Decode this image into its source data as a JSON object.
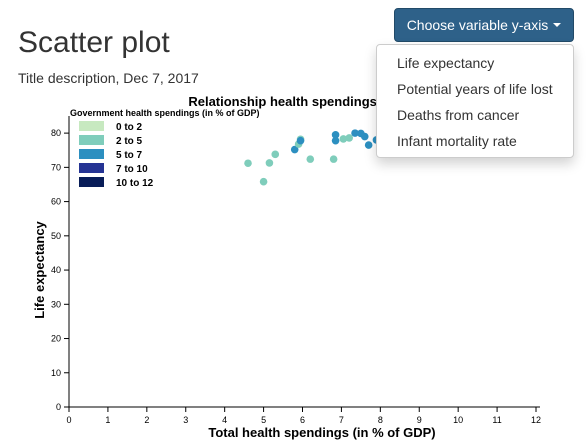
{
  "page": {
    "title": "Scatter plot",
    "subtitle": "Title description, Dec 7, 2017"
  },
  "dropdown": {
    "label": "Choose variable y-axis",
    "options": [
      "Life expectancy",
      "Potential years of life lost",
      "Deaths from cancer",
      "Infant mortality rate"
    ]
  },
  "chart_data": {
    "type": "scatter",
    "title": "Relationship health spendings an",
    "xlabel": "Total health spendings (in % of GDP)",
    "ylabel": "Life expectancy",
    "xlim": [
      0,
      12
    ],
    "ylim": [
      0,
      85
    ],
    "x_ticks": [
      "0",
      "1",
      "2",
      "3",
      "4",
      "5",
      "6",
      "7",
      "8",
      "9",
      "10",
      "11",
      "12"
    ],
    "y_ticks": [
      "0",
      "10",
      "20",
      "30",
      "40",
      "50",
      "60",
      "70",
      "80"
    ],
    "legend": {
      "title": "Government health spendings (in % of GDP)",
      "position": "top-left",
      "entries": [
        {
          "label": "0 to 2",
          "color": "#c7e9c0"
        },
        {
          "label": "2 to 5",
          "color": "#7fcdbb"
        },
        {
          "label": "5 to 7",
          "color": "#2c8fc0"
        },
        {
          "label": "7 to 10",
          "color": "#253494"
        },
        {
          "label": "10 to 12",
          "color": "#081d58"
        }
      ]
    },
    "points": [
      {
        "x": 4.6,
        "y": 71.2,
        "group": 1
      },
      {
        "x": 5.0,
        "y": 65.8,
        "group": 1
      },
      {
        "x": 5.15,
        "y": 71.3,
        "group": 1
      },
      {
        "x": 5.3,
        "y": 73.8,
        "group": 1
      },
      {
        "x": 5.8,
        "y": 75.2,
        "group": 2
      },
      {
        "x": 5.9,
        "y": 76.8,
        "group": 1
      },
      {
        "x": 5.95,
        "y": 78.2,
        "group": 1
      },
      {
        "x": 5.95,
        "y": 77.8,
        "group": 2
      },
      {
        "x": 6.2,
        "y": 72.4,
        "group": 1
      },
      {
        "x": 6.8,
        "y": 72.4,
        "group": 1
      },
      {
        "x": 6.85,
        "y": 79.5,
        "group": 2
      },
      {
        "x": 6.85,
        "y": 77.8,
        "group": 2
      },
      {
        "x": 7.05,
        "y": 78.3,
        "group": 1
      },
      {
        "x": 7.2,
        "y": 78.6,
        "group": 1
      },
      {
        "x": 7.35,
        "y": 80.0,
        "group": 2
      },
      {
        "x": 7.5,
        "y": 79.9,
        "group": 2
      },
      {
        "x": 7.6,
        "y": 79.0,
        "group": 2
      },
      {
        "x": 7.7,
        "y": 76.5,
        "group": 2
      },
      {
        "x": 7.9,
        "y": 78.0,
        "group": 2
      }
    ]
  }
}
